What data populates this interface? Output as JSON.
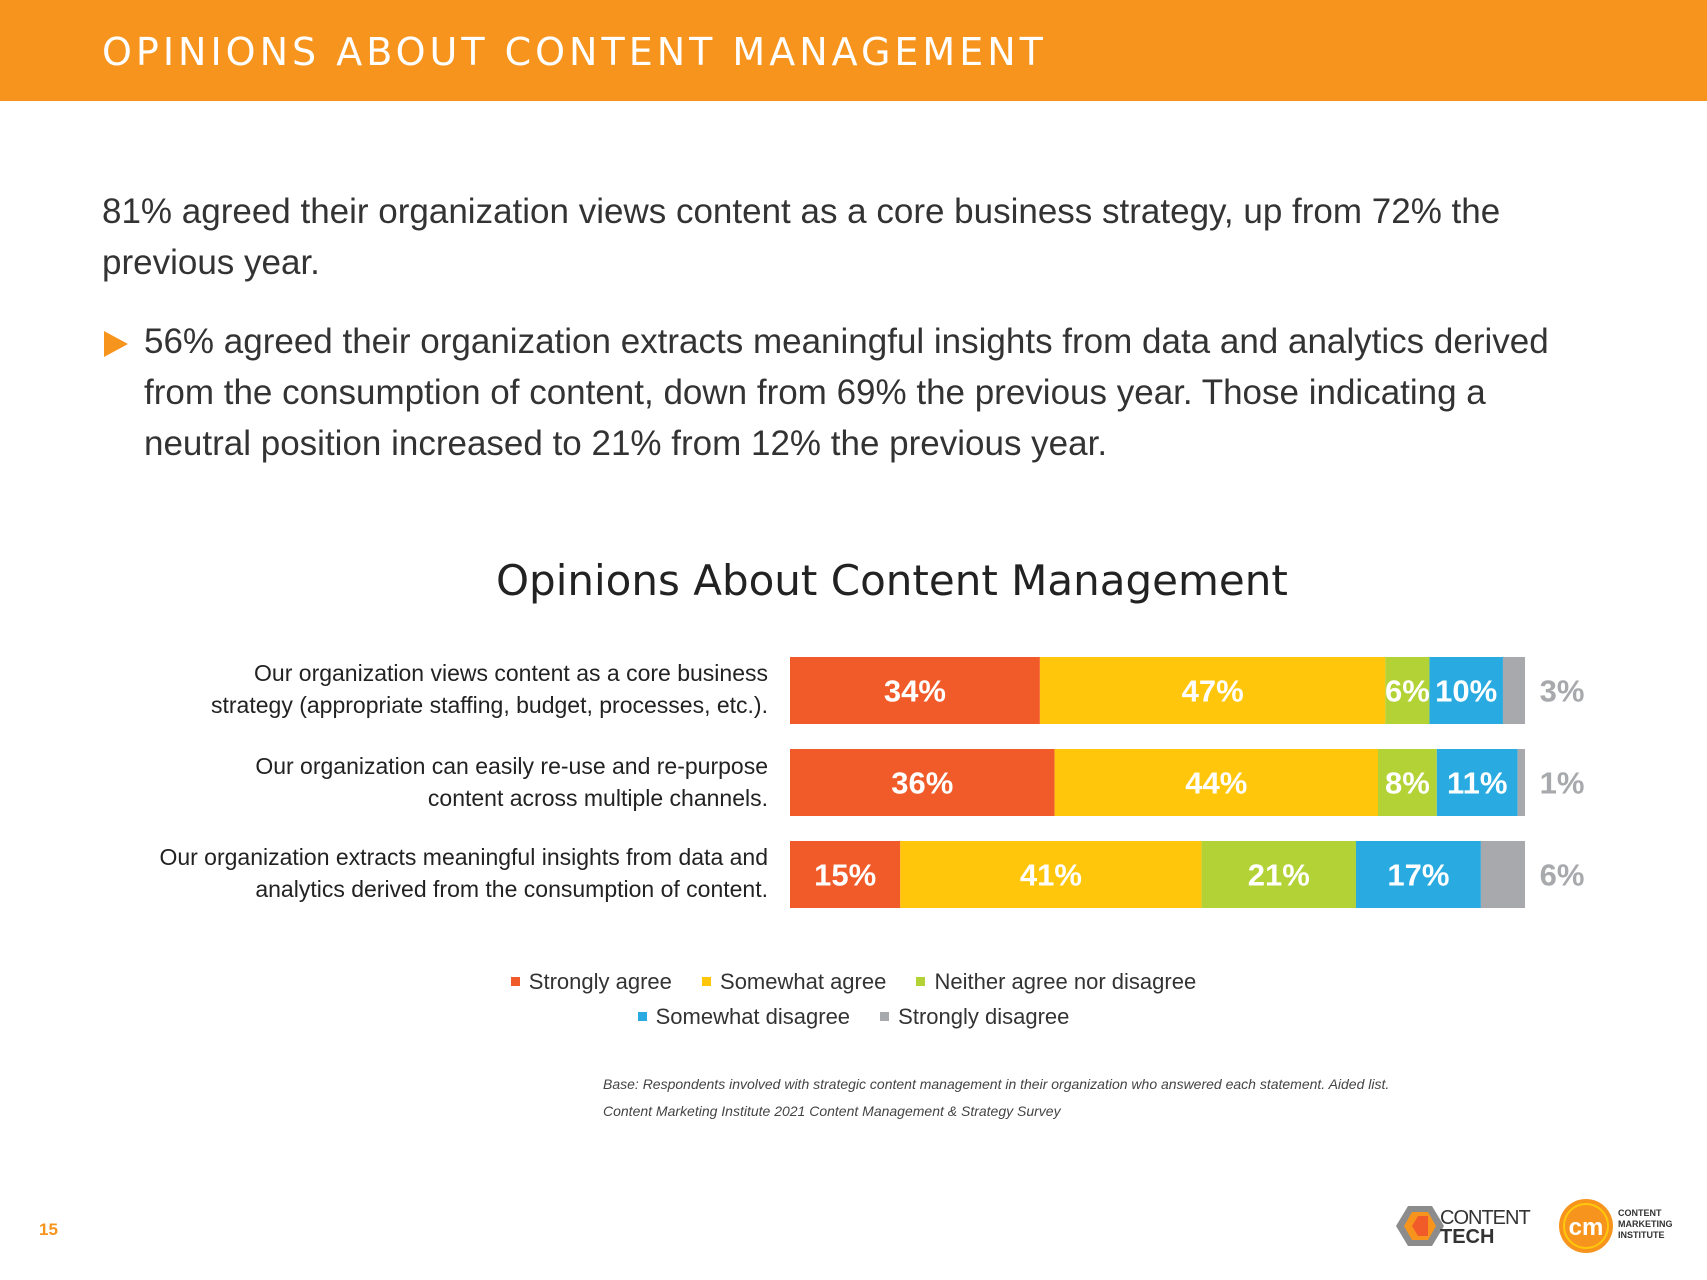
{
  "header": {
    "title": "OPINIONS ABOUT CONTENT MANAGEMENT"
  },
  "intro": {
    "paragraph": "81% agreed their organization views content as a core business strategy, up from 72% the previous year.",
    "bullet": "56% agreed their organization extracts meaningful insights from data and analytics derived from the consumption of content, down from 69% the previous year. Those indicating a neutral position increased to 21% from 12% the previous year."
  },
  "colors": {
    "accent": "#F7941D",
    "strongly_agree": "#F15A29",
    "somewhat_agree": "#FFC60B",
    "neither": "#B2D235",
    "somewhat_disagree": "#29ABE2",
    "strongly_disagree": "#A7A9AC"
  },
  "chart_data": {
    "type": "bar",
    "orientation": "horizontal-stacked",
    "title": "Opinions About Content Management",
    "categories": [
      "Our organization views content as a core business strategy (appropriate staffing, budget, processes, etc.).",
      "Our organization can easily re-use and re-purpose content across multiple channels.",
      "Our organization extracts meaningful insights from data and analytics derived from the consumption of content."
    ],
    "series": [
      {
        "name": "Strongly agree",
        "color": "#F15A29",
        "values": [
          34,
          36,
          15
        ]
      },
      {
        "name": "Somewhat agree",
        "color": "#FFC60B",
        "values": [
          47,
          44,
          41
        ]
      },
      {
        "name": "Neither agree nor disagree",
        "color": "#B2D235",
        "values": [
          6,
          8,
          21
        ]
      },
      {
        "name": "Somewhat disagree",
        "color": "#29ABE2",
        "values": [
          10,
          11,
          17
        ]
      },
      {
        "name": "Strongly disagree",
        "color": "#A7A9AC",
        "values": [
          3,
          1,
          6
        ]
      }
    ],
    "value_suffix": "%",
    "xlim": [
      0,
      100
    ],
    "legend_position": "bottom"
  },
  "labels": {
    "row1_line1": "Our organization views content as a core business",
    "row1_line2": "strategy (appropriate staffing, budget, processes, etc.).",
    "row2_line1": "Our organization can easily re-use and re-purpose",
    "row2_line2": "content across multiple channels.",
    "row3_line1": "Our organization extracts meaningful insights from data and",
    "row3_line2": "analytics derived from the consumption of content."
  },
  "legend": {
    "strongly_agree": "Strongly agree",
    "somewhat_agree": "Somewhat agree",
    "neither": "Neither agree nor disagree",
    "somewhat_disagree": "Somewhat disagree",
    "strongly_disagree": "Strongly disagree"
  },
  "notes": {
    "base": "Base: Respondents involved with strategic content management in their organization who answered each statement. Aided list.",
    "source": "Content Marketing Institute 2021 Content Management & Strategy Survey"
  },
  "footer": {
    "page_number": "15",
    "logo1_line1": "CONTENT",
    "logo1_line2": "TECH",
    "logo2_badge": "cm",
    "logo2_line1": "CONTENT",
    "logo2_line2": "MARKETING",
    "logo2_line3": "INSTITUTE"
  }
}
